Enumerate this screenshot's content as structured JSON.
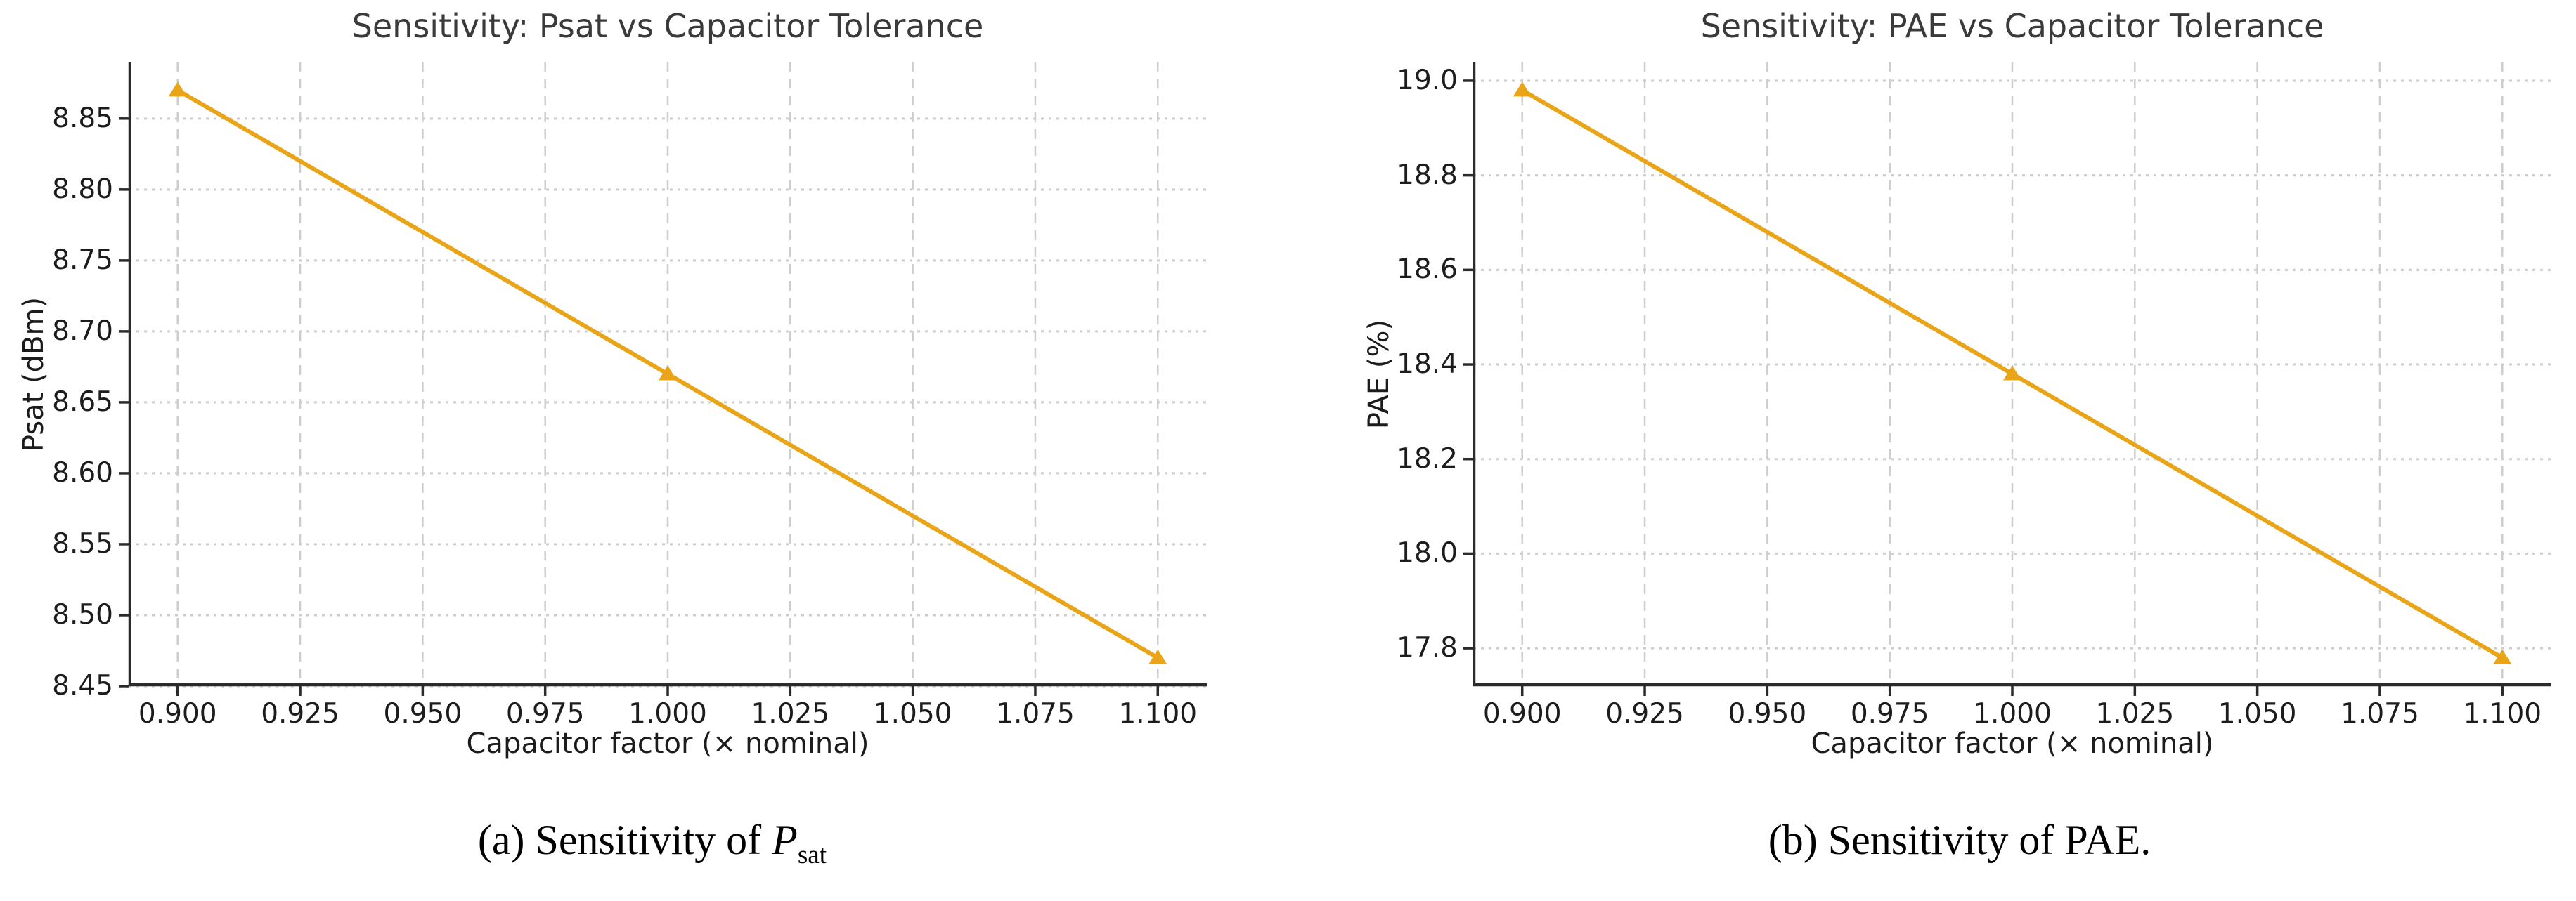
{
  "figure": {
    "background": "#ffffff",
    "accent_line_color": "#E9A417",
    "grid_color": "#cdcdcd",
    "spine_color": "#2b2b2b",
    "title_color": "#3a3a3a",
    "tick_color": "#1c1c1c"
  },
  "chart_data": [
    {
      "type": "line",
      "title": "Sensitivity: Psat vs Capacitor Tolerance",
      "xlabel": "Capacitor factor (× nominal)",
      "ylabel": "Psat (dBm)",
      "x": [
        0.9,
        1.0,
        1.1
      ],
      "y": [
        8.87,
        8.67,
        8.47
      ],
      "series_name": "Psat",
      "marker": "triangle-up",
      "line_color": "#E9A417",
      "grid": true,
      "legend": null,
      "xlim": [
        0.89,
        1.11
      ],
      "ylim": [
        8.45,
        8.89
      ],
      "xticks": [
        0.9,
        0.925,
        0.95,
        0.975,
        1.0,
        1.025,
        1.05,
        1.075,
        1.1
      ],
      "xtick_labels": [
        "0.900",
        "0.925",
        "0.950",
        "0.975",
        "1.000",
        "1.025",
        "1.050",
        "1.075",
        "1.100"
      ],
      "yticks": [
        8.45,
        8.5,
        8.55,
        8.6,
        8.65,
        8.7,
        8.75,
        8.8,
        8.85
      ],
      "ytick_labels": [
        "8.45",
        "8.50",
        "8.55",
        "8.60",
        "8.65",
        "8.70",
        "8.75",
        "8.80",
        "8.85"
      ],
      "caption": {
        "prefix": "(a) Sensitivity of ",
        "math_var": "P",
        "math_sub": "sat",
        "suffix": ""
      }
    },
    {
      "type": "line",
      "title": "Sensitivity: PAE vs Capacitor Tolerance",
      "xlabel": "Capacitor factor (× nominal)",
      "ylabel": "PAE (%)",
      "x": [
        0.9,
        1.0,
        1.1
      ],
      "y": [
        18.98,
        18.38,
        17.78
      ],
      "series_name": "PAE",
      "marker": "triangle-up",
      "line_color": "#E9A417",
      "grid": true,
      "legend": null,
      "xlim": [
        0.89,
        1.11
      ],
      "ylim": [
        17.72,
        19.04
      ],
      "xticks": [
        0.9,
        0.925,
        0.95,
        0.975,
        1.0,
        1.025,
        1.05,
        1.075,
        1.1
      ],
      "xtick_labels": [
        "0.900",
        "0.925",
        "0.950",
        "0.975",
        "1.000",
        "1.025",
        "1.050",
        "1.075",
        "1.100"
      ],
      "yticks": [
        17.8,
        18.0,
        18.2,
        18.4,
        18.6,
        18.8,
        19.0
      ],
      "ytick_labels": [
        "17.8",
        "18.0",
        "18.2",
        "18.4",
        "18.6",
        "18.8",
        "19.0"
      ],
      "caption": {
        "prefix": "(b) Sensitivity of PAE.",
        "math_var": "",
        "math_sub": "",
        "suffix": ""
      }
    }
  ]
}
